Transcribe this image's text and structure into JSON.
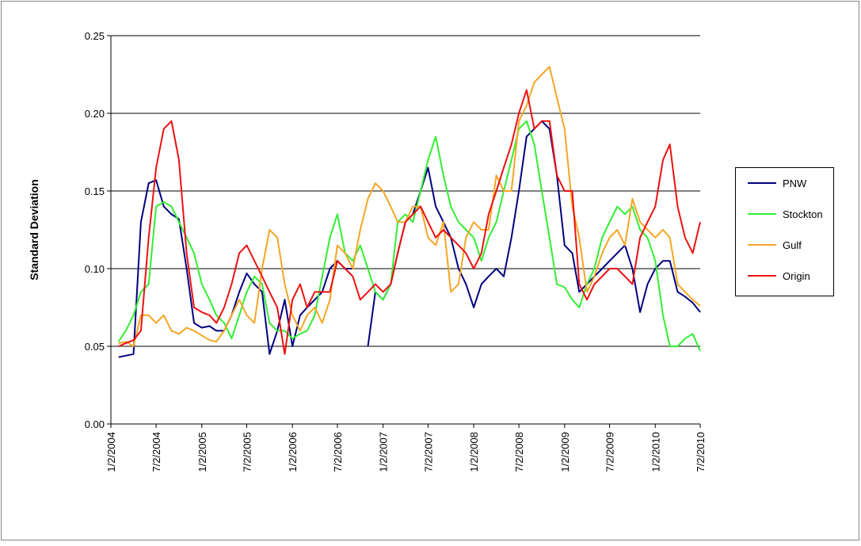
{
  "chart_data": {
    "type": "line",
    "y_label": "Standard Deviation",
    "ylim": [
      0,
      0.25
    ],
    "yticks": [
      {
        "value": 0,
        "label": "0.00"
      },
      0.05,
      {
        "value": 0.1,
        "label": "0.10"
      },
      0.15,
      {
        "value": 0.2,
        "label": "0.20"
      },
      0.25
    ],
    "xlim": [
      "1/2/2004",
      "7/2/2010"
    ],
    "xticks": [
      "1/2/2004",
      "7/2/2004",
      "1/2/2005",
      "7/2/2005",
      "1/2/2006",
      "7/2/2006",
      "1/2/2007",
      "7/2/2007",
      "1/2/2008",
      "7/2/2008",
      "1/2/2009",
      "7/2/2009",
      "1/2/2010",
      "7/2/2010"
    ],
    "grid": true,
    "legend": "right",
    "x": [
      "2/2/2004",
      "3/2/2004",
      "4/2/2004",
      "5/2/2004",
      "6/2/2004",
      "7/2/2004",
      "8/2/2004",
      "9/2/2004",
      "10/2/2004",
      "11/2/2004",
      "12/2/2004",
      "1/2/2005",
      "2/2/2005",
      "3/2/2005",
      "4/2/2005",
      "5/2/2005",
      "6/2/2005",
      "7/2/2005",
      "8/2/2005",
      "9/2/2005",
      "10/2/2005",
      "11/2/2005",
      "12/2/2005",
      "1/2/2006",
      "2/2/2006",
      "3/2/2006",
      "4/2/2006",
      "5/2/2006",
      "6/2/2006",
      "7/2/2006",
      "8/2/2006",
      "9/2/2006",
      "10/2/2006",
      "11/2/2006",
      "12/2/2006",
      "1/2/2007",
      "2/2/2007",
      "3/2/2007",
      "4/2/2007",
      "5/2/2007",
      "6/2/2007",
      "7/2/2007",
      "8/2/2007",
      "9/2/2007",
      "10/2/2007",
      "11/2/2007",
      "12/2/2007",
      "1/2/2008",
      "2/2/2008",
      "3/2/2008",
      "4/2/2008",
      "5/2/2008",
      "6/2/2008",
      "7/2/2008",
      "8/2/2008",
      "9/2/2008",
      "10/2/2008",
      "11/2/2008",
      "12/2/2008",
      "1/2/2009",
      "2/2/2009",
      "3/2/2009",
      "4/2/2009",
      "5/2/2009",
      "6/2/2009",
      "7/2/2009",
      "8/2/2009",
      "9/2/2009",
      "10/2/2009",
      "11/2/2009",
      "12/2/2009",
      "1/2/2010",
      "2/2/2010",
      "3/2/2010",
      "4/2/2010",
      "5/2/2010",
      "6/2/2010",
      "7/2/2010"
    ],
    "series": [
      {
        "name": "PNW",
        "color": "#000080",
        "values": [
          0.043,
          0.044,
          0.045,
          0.13,
          0.155,
          0.157,
          0.14,
          0.135,
          0.132,
          0.1,
          0.065,
          0.062,
          0.063,
          0.06,
          0.06,
          0.07,
          0.085,
          0.097,
          0.09,
          0.085,
          0.045,
          0.06,
          0.08,
          0.05,
          0.07,
          0.075,
          0.08,
          0.085,
          0.1,
          0.105,
          0.1,
          0.1,
          null,
          0.05,
          0.085,
          0.08,
          0.09,
          0.11,
          0.13,
          0.135,
          0.15,
          0.165,
          0.14,
          0.13,
          0.12,
          0.1,
          0.09,
          0.075,
          0.09,
          0.095,
          0.1,
          0.095,
          0.12,
          0.15,
          0.185,
          0.19,
          0.195,
          0.19,
          0.16,
          0.115,
          0.11,
          0.085,
          0.09,
          0.095,
          0.1,
          0.105,
          0.11,
          0.115,
          0.1,
          0.072,
          0.09,
          0.1,
          0.105,
          0.105,
          0.085,
          0.082,
          0.078,
          0.072
        ]
      },
      {
        "name": "Stockton",
        "color": "#33ee33",
        "values": [
          0.053,
          0.06,
          0.07,
          0.085,
          0.09,
          0.14,
          0.143,
          0.14,
          0.13,
          0.12,
          0.11,
          0.09,
          0.08,
          0.07,
          0.065,
          0.055,
          0.07,
          0.085,
          0.095,
          0.09,
          0.065,
          0.06,
          0.06,
          0.055,
          0.058,
          0.06,
          0.07,
          0.095,
          0.12,
          0.135,
          0.11,
          0.105,
          0.115,
          0.1,
          0.085,
          0.08,
          0.09,
          0.13,
          0.135,
          0.13,
          0.15,
          0.17,
          0.185,
          0.16,
          0.14,
          0.13,
          0.125,
          0.12,
          0.105,
          0.12,
          0.13,
          0.15,
          0.17,
          0.19,
          0.195,
          0.18,
          0.15,
          0.12,
          0.09,
          0.088,
          0.08,
          0.075,
          0.09,
          0.1,
          0.12,
          0.13,
          0.14,
          0.135,
          0.14,
          0.125,
          0.12,
          0.105,
          0.07,
          0.05,
          0.05,
          0.055,
          0.058,
          0.047
        ]
      },
      {
        "name": "Gulf",
        "color": "#f5a623",
        "values": [
          0.052,
          0.053,
          0.05,
          0.07,
          0.07,
          0.065,
          0.07,
          0.06,
          0.058,
          0.062,
          0.06,
          0.057,
          0.054,
          0.053,
          0.06,
          0.07,
          0.08,
          0.07,
          0.065,
          0.1,
          0.125,
          0.12,
          0.09,
          0.07,
          0.06,
          0.07,
          0.075,
          0.065,
          0.08,
          0.115,
          0.11,
          0.1,
          0.125,
          0.145,
          0.155,
          0.15,
          0.14,
          0.13,
          0.13,
          0.14,
          0.14,
          0.12,
          0.115,
          0.13,
          0.085,
          0.09,
          0.12,
          0.13,
          0.125,
          0.125,
          0.16,
          0.15,
          0.15,
          0.195,
          0.205,
          0.22,
          0.225,
          0.23,
          0.21,
          0.19,
          0.14,
          0.12,
          0.085,
          0.095,
          0.11,
          0.12,
          0.125,
          0.115,
          0.145,
          0.13,
          0.125,
          0.12,
          0.125,
          0.12,
          0.09,
          0.085,
          0.08,
          0.076
        ]
      },
      {
        "name": "Origin",
        "color": "#ee1111",
        "values": [
          0.05,
          0.052,
          0.054,
          0.06,
          0.12,
          0.165,
          0.19,
          0.195,
          0.17,
          0.11,
          0.075,
          0.072,
          0.07,
          0.065,
          0.075,
          0.09,
          0.11,
          0.115,
          0.105,
          0.095,
          0.085,
          0.075,
          0.045,
          0.08,
          0.09,
          0.075,
          0.085,
          0.085,
          0.085,
          0.105,
          0.1,
          0.095,
          0.08,
          0.085,
          0.09,
          0.085,
          0.09,
          0.11,
          0.13,
          0.135,
          0.14,
          0.13,
          0.12,
          0.125,
          0.12,
          0.115,
          0.11,
          0.1,
          0.11,
          0.135,
          0.15,
          0.165,
          0.18,
          0.2,
          0.215,
          0.19,
          0.195,
          0.195,
          0.16,
          0.15,
          0.15,
          0.09,
          0.08,
          0.09,
          0.095,
          0.1,
          0.1,
          0.095,
          0.09,
          0.12,
          0.13,
          0.14,
          0.17,
          0.18,
          0.14,
          0.12,
          0.11,
          0.13
        ]
      }
    ]
  }
}
